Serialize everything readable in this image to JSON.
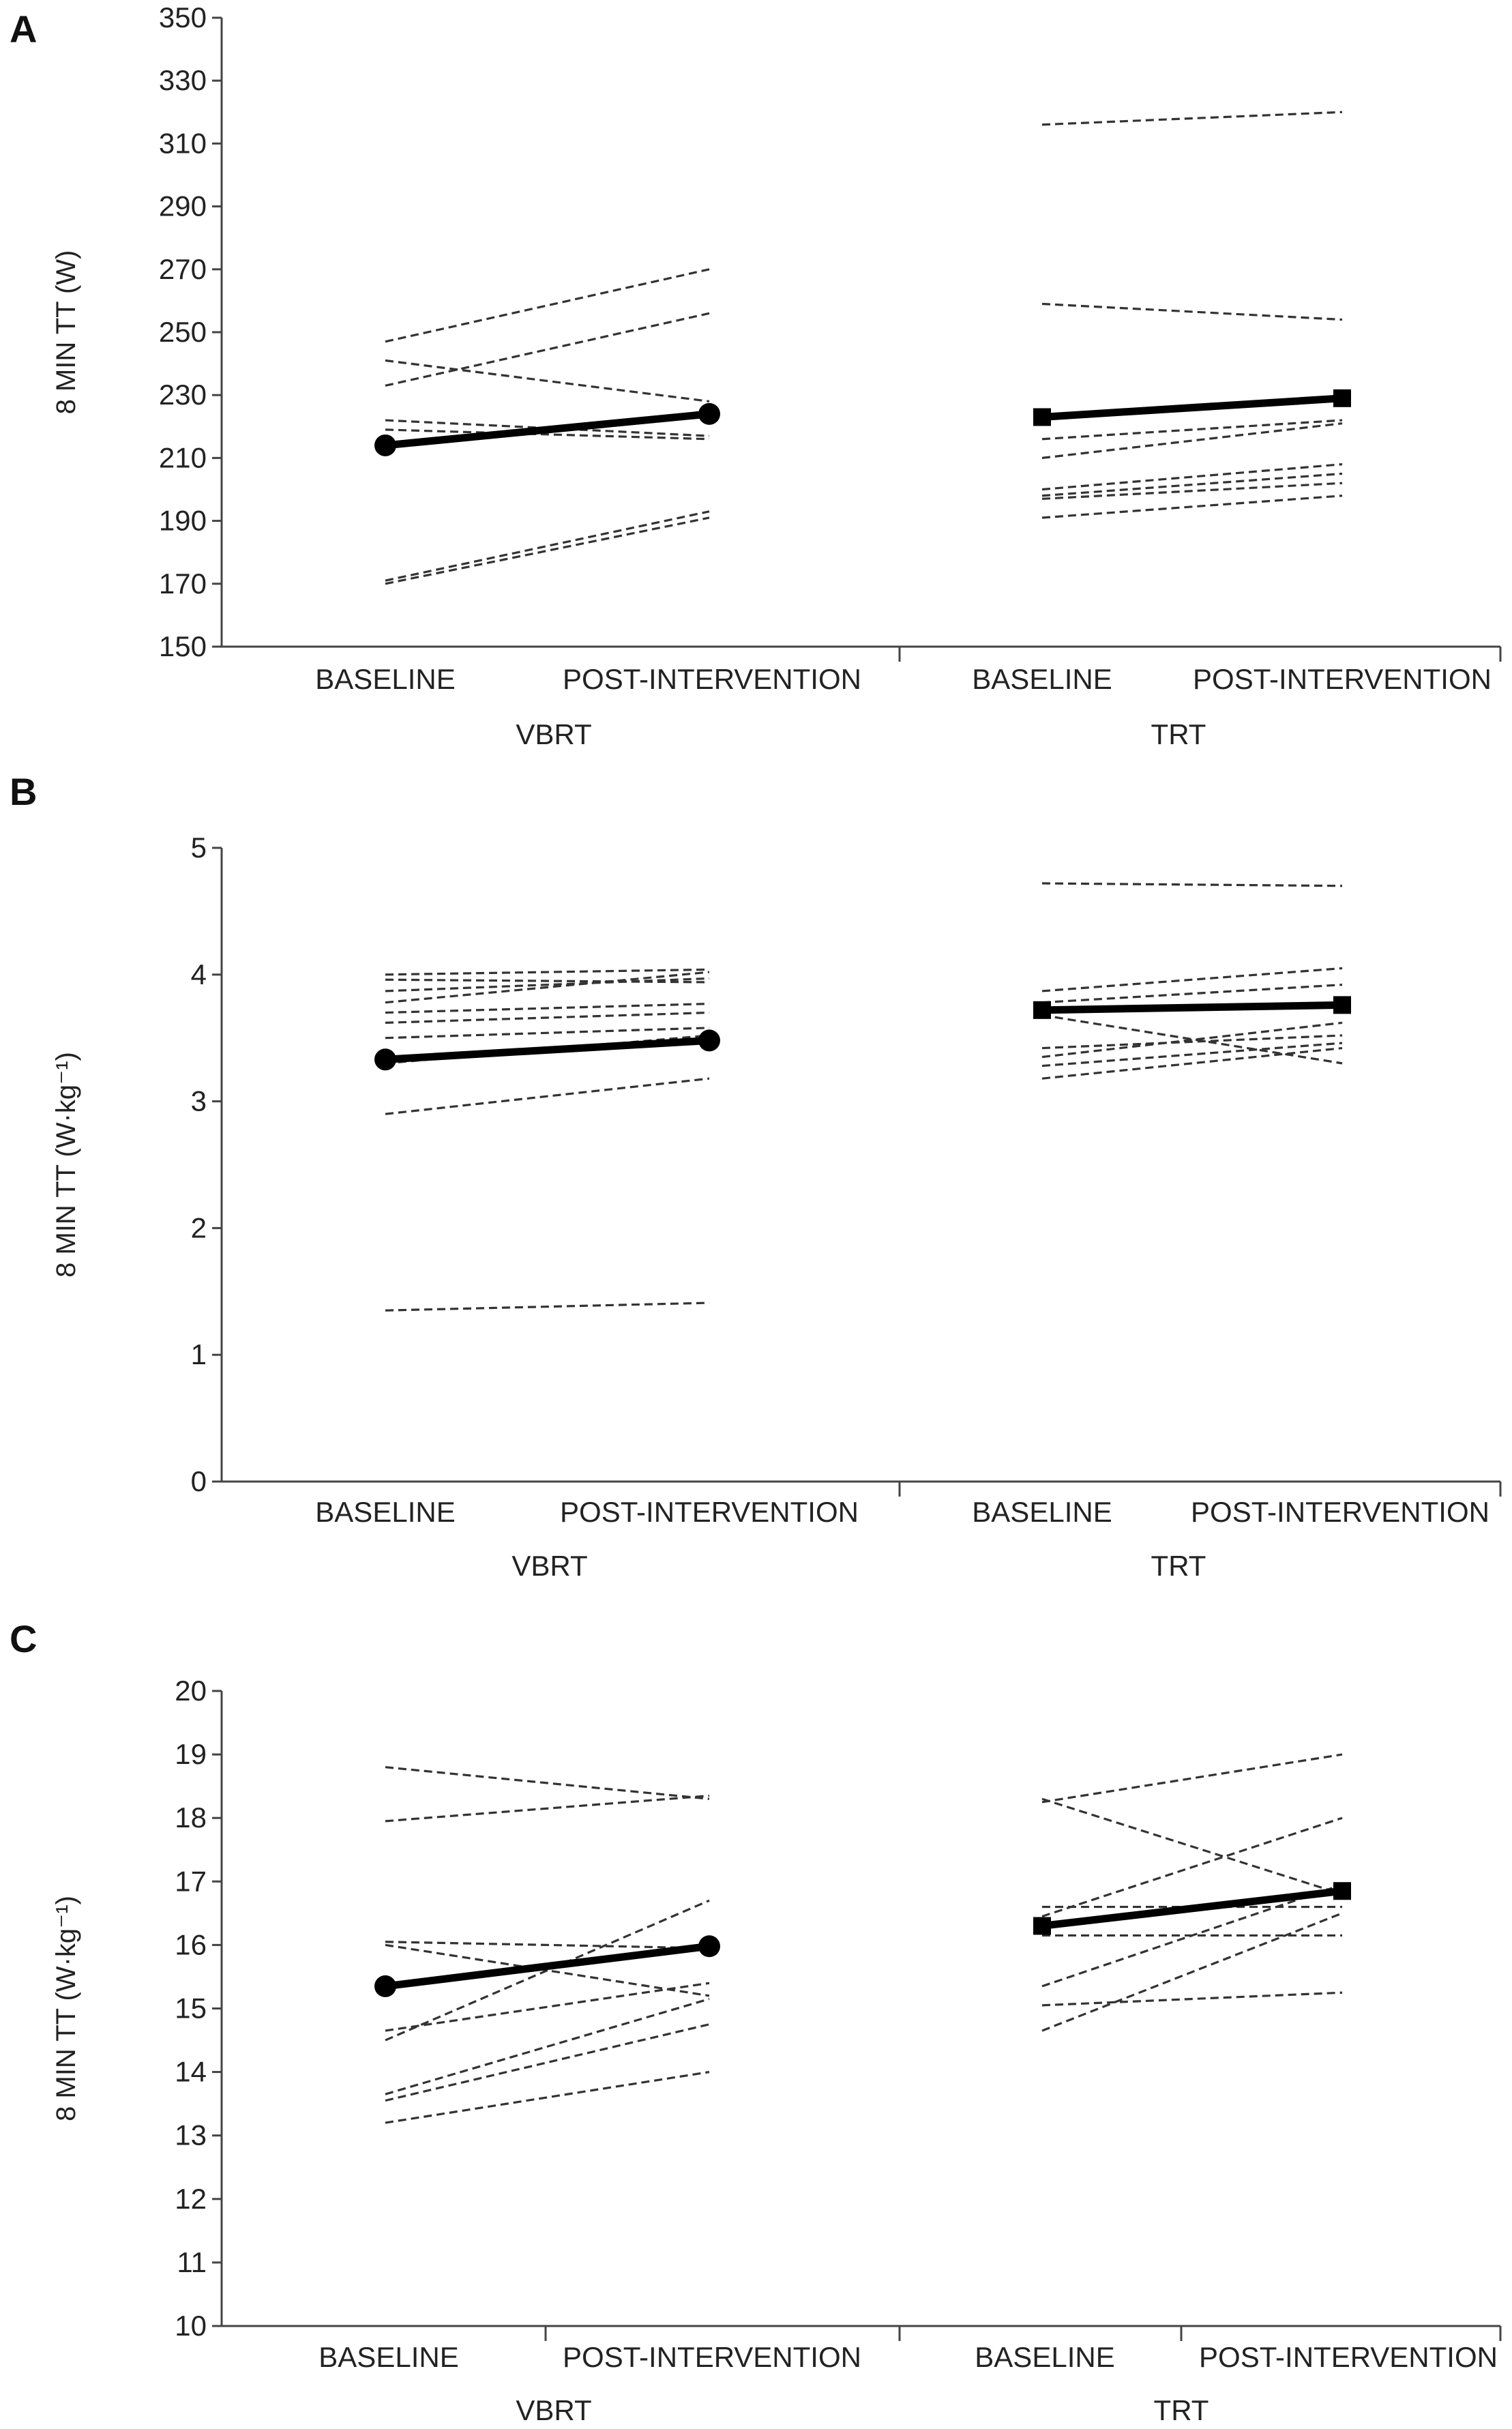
{
  "chart_data": [
    {
      "panel": "A",
      "type": "line",
      "ylabel": "8 MIN TT (W)",
      "ylim": [
        150,
        350
      ],
      "yticks": [
        150,
        170,
        190,
        210,
        230,
        250,
        270,
        290,
        310,
        330,
        350
      ],
      "groups": [
        {
          "name": "VBRT",
          "categories": [
            "BASELINE",
            "POST-INTERVENTION"
          ],
          "mean_marker": "circle",
          "mean": [
            214,
            224
          ],
          "individuals": [
            [
              247,
              270
            ],
            [
              241,
              228
            ],
            [
              233,
              256
            ],
            [
              222,
              217
            ],
            [
              219,
              216
            ],
            [
              171,
              193
            ],
            [
              170,
              191
            ]
          ]
        },
        {
          "name": "TRT",
          "categories": [
            "BASELINE",
            "POST-INTERVENTION"
          ],
          "mean_marker": "square",
          "mean": [
            223,
            229
          ],
          "individuals": [
            [
              316,
              320
            ],
            [
              259,
              254
            ],
            [
              216,
              222
            ],
            [
              210,
              221
            ],
            [
              200,
              208
            ],
            [
              198,
              205
            ],
            [
              197,
              202
            ],
            [
              191,
              198
            ]
          ]
        }
      ]
    },
    {
      "panel": "B",
      "type": "line",
      "ylabel": "8 MIN TT (W·kg⁻¹)",
      "ylim": [
        0,
        5
      ],
      "yticks": [
        0,
        1,
        2,
        3,
        4,
        5
      ],
      "groups": [
        {
          "name": "VBRT",
          "categories": [
            "BASELINE",
            "POST-INTERVENTION"
          ],
          "mean_marker": "circle",
          "mean": [
            3.33,
            3.48
          ],
          "individuals": [
            [
              4.0,
              4.04
            ],
            [
              3.96,
              3.94
            ],
            [
              3.87,
              3.97
            ],
            [
              3.78,
              4.02
            ],
            [
              3.7,
              3.77
            ],
            [
              3.62,
              3.7
            ],
            [
              3.5,
              3.58
            ],
            [
              3.3,
              3.52
            ],
            [
              2.9,
              3.18
            ],
            [
              1.35,
              1.41
            ]
          ]
        },
        {
          "name": "TRT",
          "categories": [
            "BASELINE",
            "POST-INTERVENTION"
          ],
          "mean_marker": "square",
          "mean": [
            3.72,
            3.76
          ],
          "individuals": [
            [
              4.72,
              4.7
            ],
            [
              3.87,
              4.05
            ],
            [
              3.78,
              3.92
            ],
            [
              3.68,
              3.3
            ],
            [
              3.42,
              3.52
            ],
            [
              3.35,
              3.62
            ],
            [
              3.28,
              3.46
            ],
            [
              3.18,
              3.42
            ]
          ]
        }
      ]
    },
    {
      "panel": "C",
      "type": "line",
      "ylabel": "8 MIN TT (W·kg⁻¹)",
      "ylim": [
        10,
        20
      ],
      "yticks": [
        10,
        11,
        12,
        13,
        14,
        15,
        16,
        17,
        18,
        19,
        20
      ],
      "groups": [
        {
          "name": "VBRT",
          "categories": [
            "BASELINE",
            "POST-INTERVENTION"
          ],
          "mean_marker": "circle",
          "mean": [
            15.35,
            15.98
          ],
          "individuals": [
            [
              18.8,
              18.3
            ],
            [
              17.95,
              18.35
            ],
            [
              16.05,
              15.95
            ],
            [
              16.0,
              15.2
            ],
            [
              14.65,
              15.4
            ],
            [
              14.5,
              16.7
            ],
            [
              13.65,
              15.15
            ],
            [
              13.55,
              14.75
            ],
            [
              13.2,
              14.0
            ]
          ]
        },
        {
          "name": "TRT",
          "categories": [
            "BASELINE",
            "POST-INTERVENTION"
          ],
          "mean_marker": "square",
          "mean": [
            16.3,
            16.85
          ],
          "individuals": [
            [
              18.25,
              19.0
            ],
            [
              18.3,
              16.8
            ],
            [
              16.6,
              16.6
            ],
            [
              16.45,
              18.0
            ],
            [
              16.15,
              16.15
            ],
            [
              15.35,
              16.95
            ],
            [
              15.05,
              15.25
            ],
            [
              14.65,
              16.5
            ]
          ]
        }
      ]
    }
  ]
}
